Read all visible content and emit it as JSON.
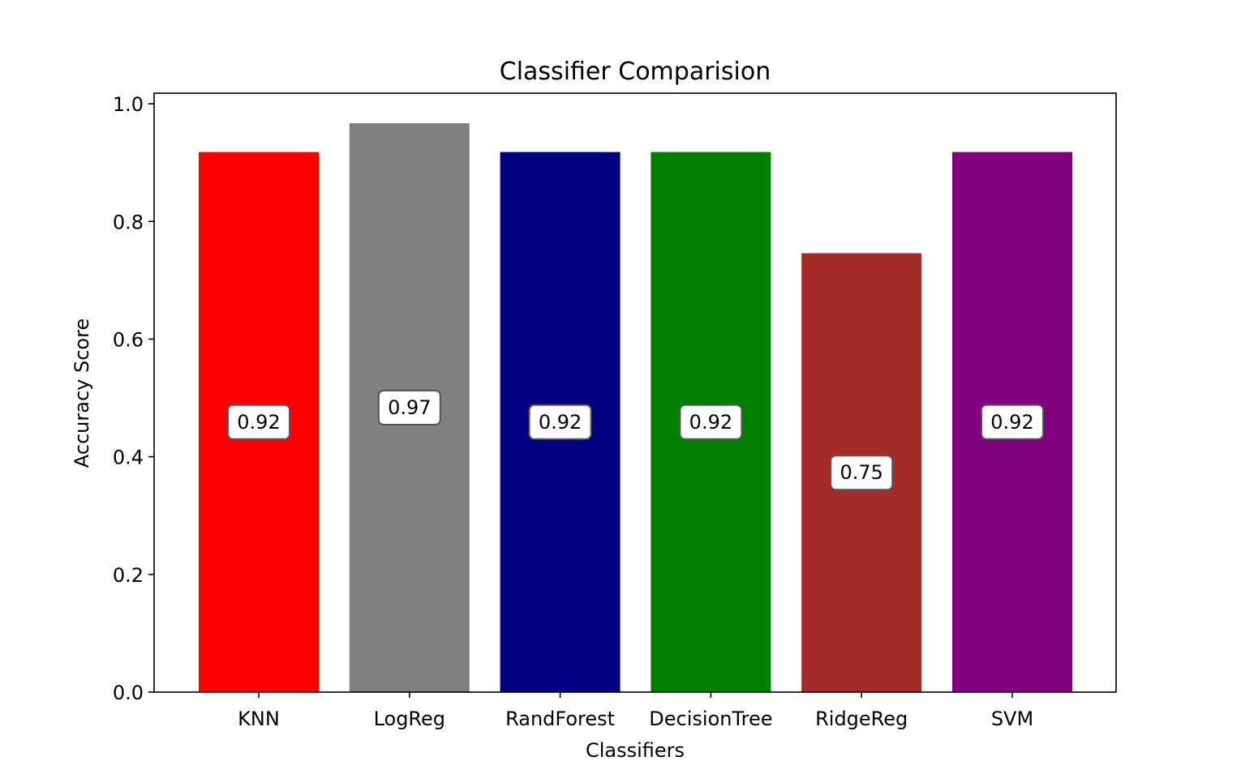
{
  "chart_data": {
    "type": "bar",
    "title": "Classifier Comparision",
    "xlabel": "Classifiers",
    "ylabel": "Accuracy Score",
    "categories": [
      "KNN",
      "LogReg",
      "RandForest",
      "DecisionTree",
      "RidgeReg",
      "SVM"
    ],
    "values": [
      0.918,
      0.967,
      0.918,
      0.918,
      0.746,
      0.918
    ],
    "labels": [
      "0.92",
      "0.97",
      "0.92",
      "0.92",
      "0.75",
      "0.92"
    ],
    "colors": [
      "#ff0000",
      "#808080",
      "#000080",
      "#008000",
      "#a52a2a",
      "#800080"
    ],
    "ylim": [
      0,
      1.0
    ],
    "yticks": [
      0.0,
      0.2,
      0.4,
      0.6,
      0.8,
      1.0
    ],
    "ytick_labels": [
      "0.0",
      "0.2",
      "0.4",
      "0.6",
      "0.8",
      "1.0"
    ],
    "grid": false,
    "legend": "none"
  }
}
